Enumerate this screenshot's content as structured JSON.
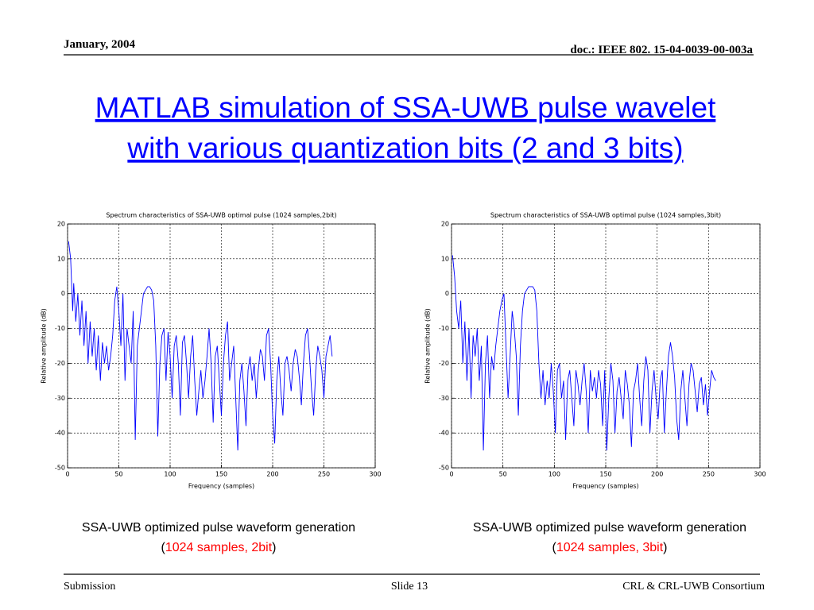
{
  "header": {
    "date": "January, 2004",
    "doc": "doc.: IEEE 802. 15-04-0039-00-003a"
  },
  "title": [
    "MATLAB simulation of SSA-UWB pulse wavelet",
    "with various quantization bits (2 and 3 bits)"
  ],
  "captions": [
    {
      "line1": "SSA-UWB optimized pulse waveform generation",
      "open": "(",
      "detail": "1024 samples, 2bit",
      "close": ")"
    },
    {
      "line1": "SSA-UWB optimized pulse waveform generation",
      "open": "(",
      "detail": "1024 samples, 3bit",
      "close": ")"
    }
  ],
  "footer": {
    "left": "Submission",
    "center": "Slide 13",
    "right": "CRL & CRL-UWB Consortium"
  },
  "chart_data": [
    {
      "type": "line",
      "title": "Spectrum characteristics of SSA-UWB optimal pulse (1024 samples,2bit)",
      "xlabel": "Frequency (samples)",
      "ylabel": "Relative amplitude (dB)",
      "xlim": [
        0,
        300
      ],
      "xticks": [
        0,
        50,
        100,
        150,
        200,
        250,
        300
      ],
      "ylim": [
        -50,
        20
      ],
      "yticks": [
        -50,
        -40,
        -30,
        -20,
        -10,
        0,
        10,
        20
      ],
      "grid": true,
      "x": [
        1,
        3,
        5,
        6,
        8,
        10,
        12,
        14,
        16,
        18,
        20,
        22,
        24,
        26,
        28,
        30,
        32,
        34,
        36,
        38,
        40,
        42,
        44,
        46,
        48,
        50,
        52,
        54,
        56,
        58,
        60,
        62,
        64,
        66,
        68,
        70,
        72,
        74,
        76,
        78,
        80,
        82,
        84,
        86,
        88,
        90,
        92,
        94,
        96,
        98,
        100,
        102,
        104,
        106,
        108,
        110,
        112,
        114,
        116,
        118,
        120,
        122,
        124,
        126,
        128,
        130,
        132,
        134,
        136,
        138,
        140,
        142,
        144,
        146,
        148,
        150,
        152,
        154,
        156,
        158,
        160,
        162,
        164,
        166,
        168,
        170,
        172,
        174,
        176,
        178,
        180,
        182,
        184,
        186,
        188,
        190,
        192,
        194,
        196,
        198,
        200,
        202,
        204,
        206,
        208,
        210,
        212,
        214,
        216,
        218,
        220,
        222,
        224,
        226,
        228,
        230,
        232,
        234,
        236,
        238,
        240,
        242,
        244,
        246,
        248,
        250,
        252,
        254,
        256,
        258
      ],
      "series": [
        {
          "color": "#0000ff",
          "values": [
            15,
            10,
            -5,
            3,
            -8,
            0,
            -12,
            -2,
            -15,
            -5,
            -20,
            -8,
            -18,
            -10,
            -22,
            -12,
            -25,
            -14,
            -20,
            -15,
            -22,
            -18,
            -12,
            -2,
            2,
            -5,
            -15,
            0,
            -25,
            -10,
            -15,
            -20,
            -5,
            -42,
            -15,
            -10,
            -5,
            0,
            1,
            2,
            2,
            1,
            -2,
            -15,
            -41,
            -20,
            -12,
            -10,
            -25,
            -11,
            -18,
            -30,
            -15,
            -12,
            -20,
            -35,
            -14,
            -12,
            -20,
            -30,
            -18,
            -12,
            -25,
            -35,
            -28,
            -22,
            -30,
            -25,
            -18,
            -10,
            -20,
            -37,
            -18,
            -15,
            -25,
            -35,
            -20,
            -12,
            -8,
            -25,
            -20,
            -15,
            -30,
            -45,
            -25,
            -20,
            -28,
            -38,
            -22,
            -18,
            -25,
            -20,
            -30,
            -22,
            -16,
            -18,
            -25,
            -12,
            -10,
            -20,
            -35,
            -43,
            -25,
            -18,
            -28,
            -35,
            -20,
            -18,
            -22,
            -28,
            -20,
            -16,
            -18,
            -24,
            -32,
            -20,
            -12,
            -10,
            -18,
            -28,
            -35,
            -22,
            -15,
            -18,
            -22,
            -30,
            -18,
            -15,
            -12,
            -18
          ]
        }
      ]
    },
    {
      "type": "line",
      "title": "Spectrum characteristics of SSA-UWB optimal pulse (1024 samples,3bit)",
      "xlabel": "Frequency (samples)",
      "ylabel": "Relative amplitude (dB)",
      "xlim": [
        0,
        300
      ],
      "xticks": [
        0,
        50,
        100,
        150,
        200,
        250,
        300
      ],
      "ylim": [
        -50,
        20
      ],
      "yticks": [
        -50,
        -40,
        -30,
        -20,
        -10,
        0,
        10,
        20
      ],
      "grid": true,
      "x": [
        1,
        3,
        5,
        7,
        9,
        11,
        13,
        15,
        17,
        19,
        21,
        23,
        25,
        27,
        29,
        31,
        33,
        35,
        37,
        39,
        41,
        43,
        45,
        47,
        49,
        51,
        53,
        55,
        57,
        59,
        61,
        63,
        65,
        67,
        69,
        71,
        73,
        75,
        77,
        79,
        81,
        83,
        85,
        87,
        89,
        91,
        93,
        95,
        97,
        99,
        101,
        103,
        105,
        107,
        109,
        111,
        113,
        115,
        117,
        119,
        121,
        123,
        125,
        127,
        129,
        131,
        133,
        135,
        137,
        139,
        141,
        143,
        145,
        147,
        149,
        151,
        153,
        155,
        157,
        159,
        161,
        163,
        165,
        167,
        169,
        171,
        173,
        175,
        177,
        179,
        181,
        183,
        185,
        187,
        189,
        191,
        193,
        195,
        197,
        199,
        201,
        203,
        205,
        207,
        209,
        211,
        213,
        215,
        217,
        219,
        221,
        223,
        225,
        227,
        229,
        231,
        233,
        235,
        237,
        239,
        241,
        243,
        245,
        247,
        249,
        251,
        253,
        255,
        257
      ],
      "series": [
        {
          "color": "#0000ff",
          "values": [
            11,
            5,
            -5,
            -10,
            -2,
            -20,
            -8,
            -25,
            -10,
            -30,
            -12,
            -18,
            -10,
            -25,
            -15,
            -45,
            -20,
            -12,
            -30,
            -18,
            -22,
            -15,
            -10,
            -5,
            -2,
            0,
            -15,
            -30,
            -18,
            -5,
            -10,
            -18,
            -35,
            -15,
            -5,
            0,
            1,
            2,
            2,
            2,
            1,
            -5,
            -20,
            -30,
            -22,
            -32,
            -25,
            -30,
            -20,
            -28,
            -40,
            -22,
            -20,
            -30,
            -25,
            -42,
            -25,
            -22,
            -30,
            -38,
            -22,
            -26,
            -32,
            -25,
            -20,
            -28,
            -40,
            -22,
            -28,
            -24,
            -30,
            -22,
            -26,
            -38,
            -22,
            -45,
            -30,
            -20,
            -25,
            -40,
            -28,
            -24,
            -30,
            -36,
            -22,
            -26,
            -32,
            -44,
            -28,
            -25,
            -20,
            -30,
            -38,
            -25,
            -18,
            -22,
            -40,
            -28,
            -22,
            -30,
            -36,
            -25,
            -22,
            -40,
            -28,
            -18,
            -14,
            -18,
            -24,
            -36,
            -42,
            -28,
            -22,
            -30,
            -38,
            -26,
            -20,
            -22,
            -28,
            -34,
            -26,
            -24,
            -32,
            -26,
            -35,
            -28,
            -22,
            -24,
            -25
          ]
        }
      ]
    }
  ]
}
